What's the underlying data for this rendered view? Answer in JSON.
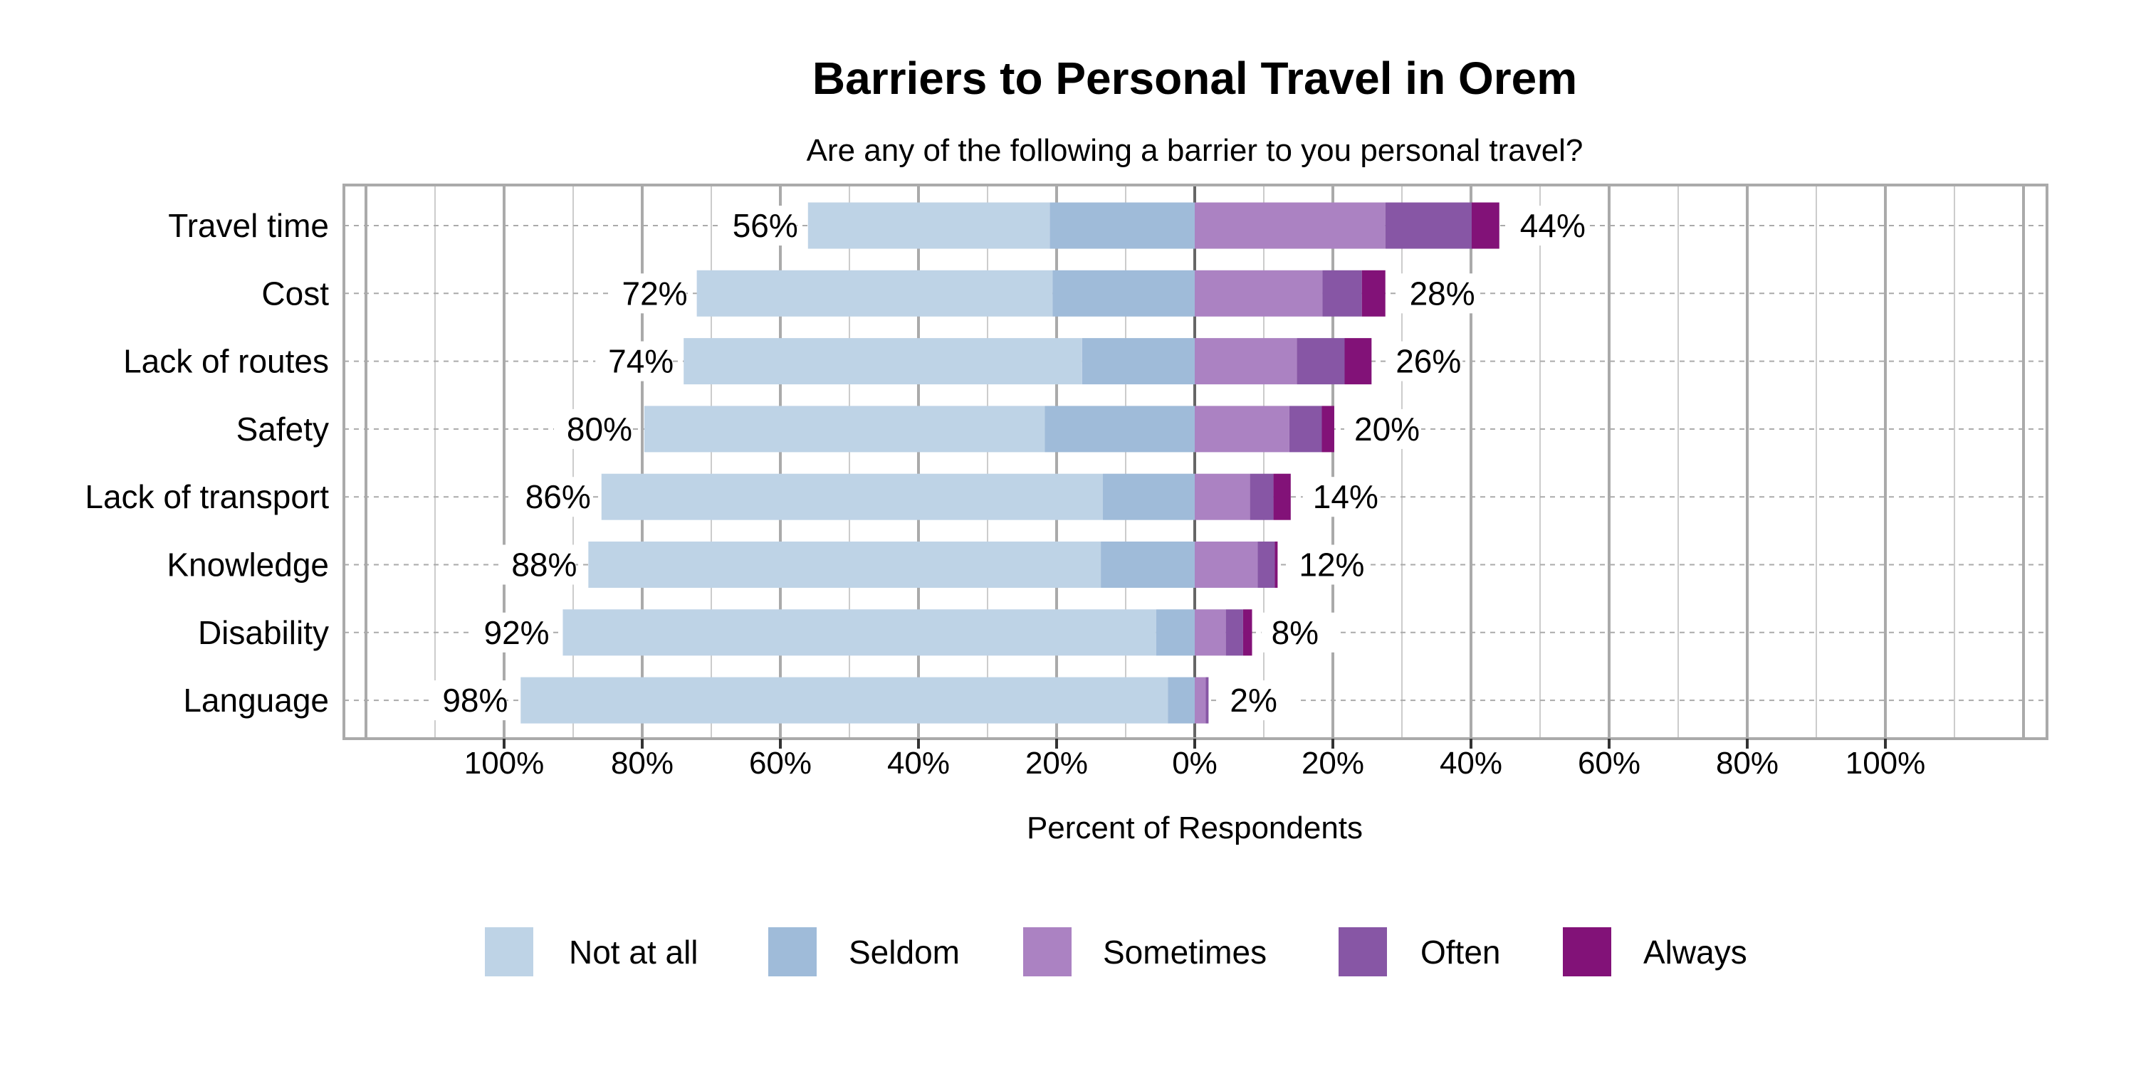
{
  "chart_data": {
    "type": "bar",
    "orientation": "horizontal-diverging-stacked",
    "title": "Barriers to Personal Travel in Orem",
    "subtitle": "Are any of the following a barrier to you personal travel?",
    "xlabel": "Percent of Respondents",
    "ylabel": "",
    "xlim": [
      -100,
      100
    ],
    "xticks": [
      "100%",
      "80%",
      "60%",
      "40%",
      "20%",
      "0%",
      "20%",
      "40%",
      "60%",
      "80%",
      "100%"
    ],
    "grid": true,
    "legend_position": "bottom",
    "categories": [
      "Travel time",
      "Cost",
      "Lack of routes",
      "Safety",
      "Lack of transport",
      "Knowledge",
      "Disability",
      "Language"
    ],
    "series": [
      {
        "name": "Not at all",
        "side": "left",
        "color": "#bed3e6",
        "values": [
          35,
          51.5,
          57.7,
          58,
          72.6,
          74.2,
          85.9,
          93.7
        ]
      },
      {
        "name": "Seldom",
        "side": "left",
        "color": "#9fbbd9",
        "values": [
          21,
          20.6,
          16.3,
          21.7,
          13.3,
          13.6,
          5.6,
          3.9
        ]
      },
      {
        "name": "Sometimes",
        "side": "right",
        "color": "#ab82c2",
        "values": [
          27.6,
          18.5,
          14.8,
          13.7,
          8.0,
          9.1,
          4.5,
          1.6
        ]
      },
      {
        "name": "Often",
        "side": "right",
        "color": "#8756a5",
        "values": [
          12.5,
          5.7,
          6.9,
          4.7,
          3.4,
          2.5,
          2.5,
          0.4
        ]
      },
      {
        "name": "Always",
        "side": "right",
        "color": "#821278",
        "values": [
          4,
          3.4,
          3.9,
          1.8,
          2.5,
          0.4,
          1.3,
          0
        ]
      }
    ],
    "left_totals": [
      "56%",
      "72%",
      "74%",
      "80%",
      "86%",
      "88%",
      "92%",
      "98%"
    ],
    "right_totals": [
      "44%",
      "28%",
      "26%",
      "20%",
      "14%",
      "12%",
      "8%",
      "2%"
    ],
    "left_total_values": [
      56,
      72,
      74,
      80,
      86,
      88,
      92,
      98
    ],
    "right_total_values": [
      44,
      28,
      26,
      20,
      14,
      12,
      8,
      2
    ]
  }
}
